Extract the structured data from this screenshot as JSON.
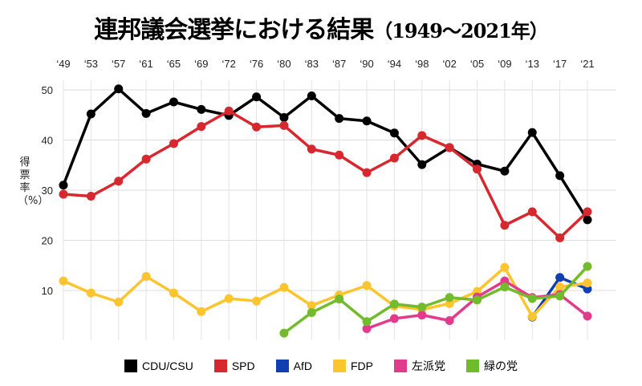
{
  "title": {
    "main": "連邦議会選挙における結果",
    "years": "（1949〜2021年）"
  },
  "chart_data": {
    "type": "line",
    "title": "連邦議会選挙における結果（1949〜2021年）",
    "ylabel": "得票率（%）",
    "xlabel": "",
    "x": [
      "‘49",
      "‘53",
      "‘57",
      "‘61",
      "‘65",
      "‘69",
      "‘72",
      "‘76",
      "‘80",
      "‘83",
      "‘87",
      "‘90",
      "‘94",
      "‘98",
      "‘02",
      "‘05",
      "‘09",
      "‘13",
      "‘17",
      "‘21"
    ],
    "yticks": [
      10,
      20,
      30,
      40,
      50
    ],
    "ylim": [
      0,
      52
    ],
    "grid": true,
    "legend_position": "bottom",
    "series": [
      {
        "name": "CDU/CSU",
        "color": "#000000",
        "values": [
          31.0,
          45.2,
          50.2,
          45.3,
          47.6,
          46.1,
          44.9,
          48.6,
          44.5,
          48.8,
          44.3,
          43.8,
          41.4,
          35.1,
          38.5,
          35.2,
          33.8,
          41.5,
          32.9,
          24.1
        ]
      },
      {
        "name": "SPD",
        "color": "#d7282f",
        "values": [
          29.2,
          28.8,
          31.8,
          36.2,
          39.3,
          42.7,
          45.8,
          42.6,
          42.9,
          38.2,
          37.0,
          33.5,
          36.4,
          40.9,
          38.5,
          34.2,
          23.0,
          25.7,
          20.5,
          25.7
        ]
      },
      {
        "name": "AfD",
        "color": "#0f3fb0",
        "values": [
          null,
          null,
          null,
          null,
          null,
          null,
          null,
          null,
          null,
          null,
          null,
          null,
          null,
          null,
          null,
          null,
          null,
          4.7,
          12.6,
          10.3
        ]
      },
      {
        "name": "FDP",
        "color": "#fcc52f",
        "values": [
          11.9,
          9.5,
          7.7,
          12.8,
          9.5,
          5.8,
          8.4,
          7.9,
          10.6,
          7.0,
          9.1,
          11.0,
          6.9,
          6.2,
          7.4,
          9.8,
          14.6,
          4.8,
          10.7,
          11.5
        ]
      },
      {
        "name": "左派党",
        "color": "#e33b8c",
        "values": [
          null,
          null,
          null,
          null,
          null,
          null,
          null,
          null,
          null,
          null,
          null,
          2.4,
          4.4,
          5.1,
          4.0,
          8.7,
          11.9,
          8.6,
          9.2,
          4.9
        ]
      },
      {
        "name": "緑の党",
        "color": "#72bb2c",
        "values": [
          null,
          null,
          null,
          null,
          null,
          null,
          null,
          null,
          1.5,
          5.6,
          8.3,
          3.8,
          7.3,
          6.7,
          8.6,
          8.1,
          10.7,
          8.4,
          8.9,
          14.8
        ]
      }
    ]
  }
}
